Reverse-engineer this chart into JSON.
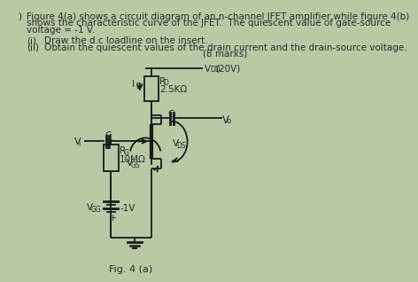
{
  "background_color": "#b8c9a5",
  "text_color": "#2a2a2a",
  "title_text": "Fig. 4 (a)",
  "header_line1": "Figure 4(a) shows a circuit diagram of an n-channel JFET amplifier while figure 4(b)",
  "header_line2": "shows the characteristic curve of the JFET.  The quiescent value of gate-source",
  "header_line3": "voltage = -1 V.",
  "sub_i": "(i)",
  "sub_i_text": "Draw the d.c loadline on the insert.",
  "sub_ii": "(ii)",
  "sub_ii_text": "Obtain the quiescent values of the drain current and the drain-source voltage.",
  "marks_text": "(8 marks)",
  "vdd_label": "V",
  "vdd_sub": "DD",
  "vdd_val": "(20V)",
  "rd_label": "R",
  "rd_sub": "D",
  "rd_val": "2.5KΩ",
  "id_label": "I",
  "id_sub": "D",
  "c2_label": "C",
  "c2_sub": "2",
  "vo_label": "V",
  "vo_sub": "o",
  "c1_label": "C",
  "c1_sub": "1",
  "vi_label": "V",
  "vi_sub": "i",
  "vds_label": "V",
  "vds_sub": "DS",
  "vgs_label": "V",
  "vgs_sub": "GS",
  "rg_label": "R",
  "rg_sub": "G",
  "rg_val": "10MΩ",
  "vgg_label": "V",
  "vgg_sub": "GG",
  "vgg_val": "-1V",
  "line_color": "#1a1a1a",
  "component_fill": "#b8c9a5",
  "component_edge": "#1a1a1a"
}
